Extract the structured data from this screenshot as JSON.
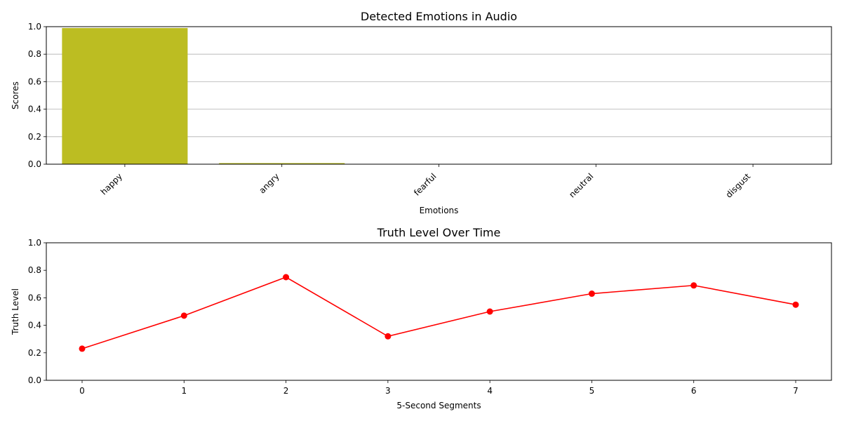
{
  "chart_data": [
    {
      "type": "bar",
      "title": "Detected Emotions in Audio",
      "xlabel": "Emotions",
      "ylabel": "Scores",
      "categories": [
        "happy",
        "angry",
        "fearful",
        "neutral",
        "disgust"
      ],
      "values": [
        0.99,
        0.008,
        0.002,
        0.002,
        0.001
      ],
      "ylim": [
        0,
        1.0
      ],
      "yticks": [
        "0.0",
        "0.2",
        "0.4",
        "0.6",
        "0.8",
        "1.0"
      ],
      "ytick_values": [
        0,
        0.2,
        0.4,
        0.6,
        0.8,
        1.0
      ],
      "grid": "y-axis horizontal lines",
      "bar_color": "#bcbd22",
      "grid_color": "#b0b0b0"
    },
    {
      "type": "line",
      "title": "Truth Level Over Time",
      "xlabel": "5-Second Segments",
      "ylabel": "Truth Level",
      "x": [
        0,
        1,
        2,
        3,
        4,
        5,
        6,
        7
      ],
      "y": [
        0.23,
        0.47,
        0.75,
        0.32,
        0.5,
        0.63,
        0.69,
        0.55
      ],
      "xticks": [
        "0",
        "1",
        "2",
        "3",
        "4",
        "5",
        "6",
        "7"
      ],
      "yticks": [
        "0.0",
        "0.2",
        "0.4",
        "0.6",
        "0.8",
        "1.0"
      ],
      "ytick_values": [
        0,
        0.2,
        0.4,
        0.6,
        0.8,
        1.0
      ],
      "ylim": [
        0,
        1.0
      ],
      "grid": "none",
      "line_color": "#ff0000",
      "marker": "circle"
    }
  ]
}
